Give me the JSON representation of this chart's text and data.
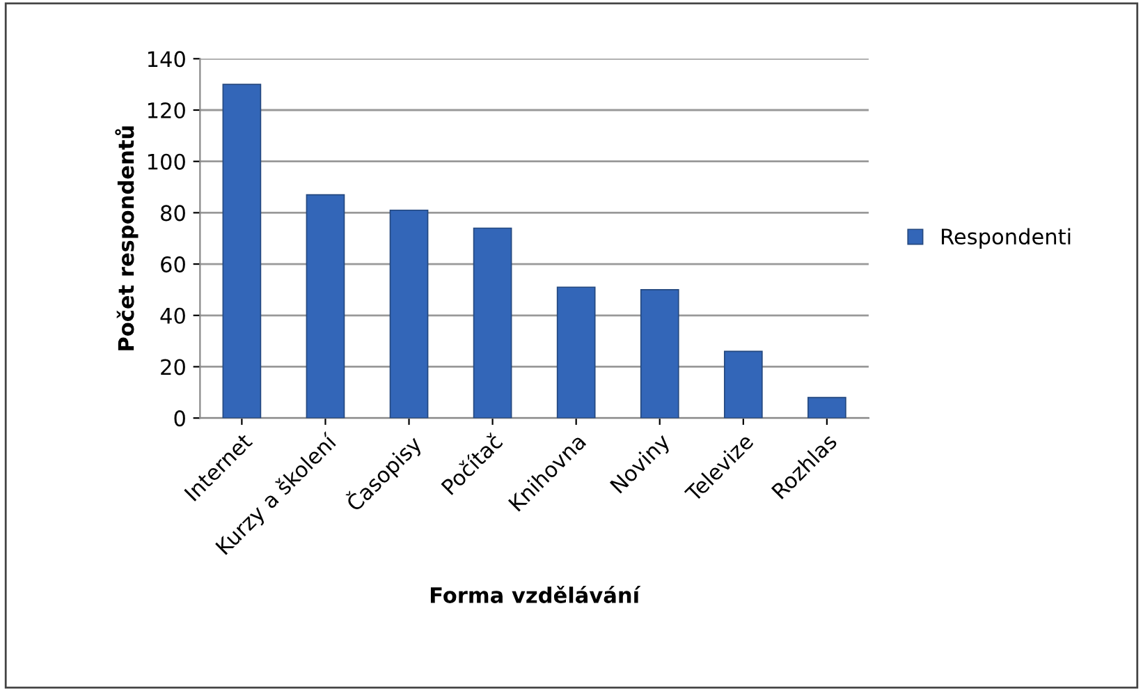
{
  "chart_data": {
    "type": "bar",
    "xlabel": "Forma vzdělávání",
    "ylabel": "Počet respondentů",
    "categories": [
      "Internet",
      "Kurzy a školení",
      "Časopisy",
      "Počítač",
      "Knihovna",
      "Noviny",
      "Televize",
      "Rozhlas"
    ],
    "series": [
      {
        "name": "Respondenti",
        "color": "#3366b8",
        "values": [
          130,
          87,
          81,
          74,
          51,
          50,
          26,
          8
        ]
      }
    ],
    "ylim": [
      0,
      140
    ],
    "yticks": [
      0,
      20,
      40,
      60,
      80,
      100,
      120,
      140
    ],
    "grid": "y",
    "legend": "right"
  }
}
